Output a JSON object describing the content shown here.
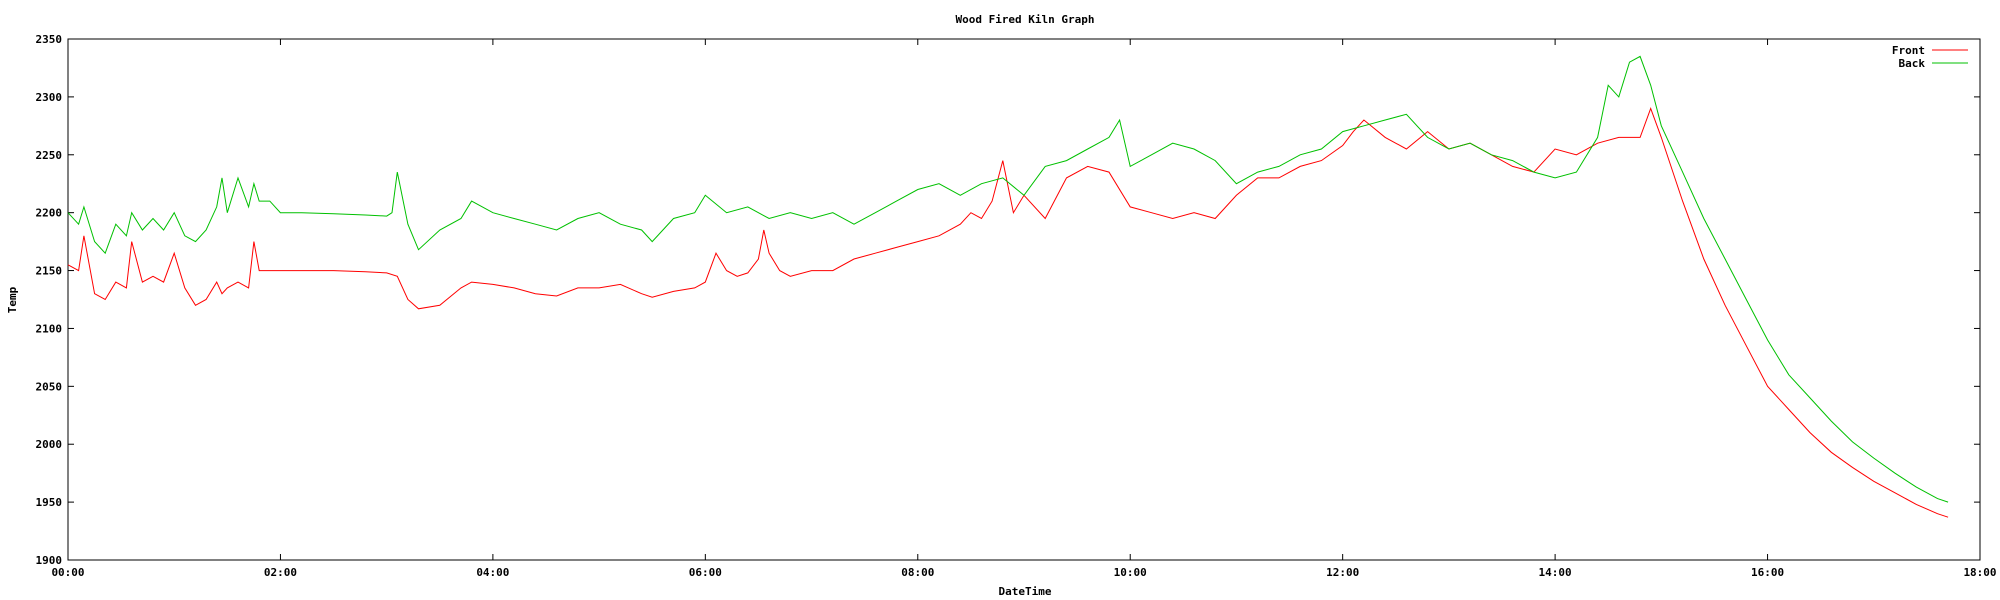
{
  "chart_data": {
    "type": "line",
    "title": "Wood Fired Kiln Graph",
    "xlabel": "DateTime",
    "ylabel": "Temp",
    "xlim": [
      0,
      18
    ],
    "ylim": [
      1900,
      2350
    ],
    "xticks": [
      0,
      2,
      4,
      6,
      8,
      10,
      12,
      14,
      16,
      18
    ],
    "xtick_labels": [
      "00:00",
      "02:00",
      "04:00",
      "06:00",
      "08:00",
      "10:00",
      "12:00",
      "14:00",
      "16:00",
      "18:00"
    ],
    "yticks": [
      1900,
      1950,
      2000,
      2050,
      2100,
      2150,
      2200,
      2250,
      2300,
      2350
    ],
    "grid": false,
    "legend": "top-right",
    "series": [
      {
        "name": "Front",
        "color": "#ff0000",
        "x": [
          0.0,
          0.1,
          0.15,
          0.25,
          0.35,
          0.45,
          0.55,
          0.6,
          0.7,
          0.8,
          0.9,
          1.0,
          1.1,
          1.2,
          1.3,
          1.4,
          1.45,
          1.5,
          1.6,
          1.7,
          1.75,
          1.8,
          1.9,
          2.0,
          2.2,
          2.5,
          2.8,
          3.0,
          3.1,
          3.2,
          3.3,
          3.5,
          3.7,
          3.8,
          4.0,
          4.2,
          4.4,
          4.6,
          4.8,
          5.0,
          5.2,
          5.4,
          5.5,
          5.7,
          5.9,
          6.0,
          6.1,
          6.2,
          6.3,
          6.4,
          6.5,
          6.55,
          6.6,
          6.7,
          6.8,
          7.0,
          7.2,
          7.4,
          7.6,
          7.8,
          8.0,
          8.2,
          8.4,
          8.5,
          8.6,
          8.7,
          8.8,
          8.9,
          9.0,
          9.2,
          9.4,
          9.6,
          9.8,
          10.0,
          10.2,
          10.4,
          10.6,
          10.8,
          11.0,
          11.2,
          11.4,
          11.6,
          11.8,
          12.0,
          12.1,
          12.2,
          12.4,
          12.6,
          12.8,
          13.0,
          13.2,
          13.4,
          13.6,
          13.8,
          14.0,
          14.2,
          14.4,
          14.6,
          14.8,
          14.9,
          15.0,
          15.2,
          15.4,
          15.6,
          15.8,
          16.0,
          16.2,
          16.4,
          16.6,
          16.8,
          17.0,
          17.2,
          17.4,
          17.6,
          17.7
        ],
        "y": [
          2155,
          2150,
          2180,
          2130,
          2125,
          2140,
          2135,
          2175,
          2140,
          2145,
          2140,
          2165,
          2135,
          2120,
          2125,
          2140,
          2130,
          2135,
          2140,
          2135,
          2175,
          2150,
          2150,
          2150,
          2150,
          2150,
          2149,
          2148,
          2145,
          2125,
          2117,
          2120,
          2135,
          2140,
          2138,
          2135,
          2130,
          2128,
          2135,
          2135,
          2138,
          2130,
          2127,
          2132,
          2135,
          2140,
          2165,
          2150,
          2145,
          2148,
          2160,
          2185,
          2165,
          2150,
          2145,
          2150,
          2150,
          2160,
          2165,
          2170,
          2175,
          2180,
          2190,
          2200,
          2195,
          2210,
          2245,
          2200,
          2215,
          2195,
          2230,
          2240,
          2235,
          2205,
          2200,
          2195,
          2200,
          2195,
          2215,
          2230,
          2230,
          2240,
          2245,
          2258,
          2270,
          2280,
          2265,
          2255,
          2270,
          2255,
          2260,
          2250,
          2240,
          2235,
          2255,
          2250,
          2260,
          2265,
          2265,
          2290,
          2265,
          2210,
          2160,
          2120,
          2085,
          2050,
          2030,
          2010,
          1993,
          1980,
          1968,
          1958,
          1948,
          1940,
          1937
        ]
      },
      {
        "name": "Back",
        "color": "#00c000",
        "x": [
          0.0,
          0.1,
          0.15,
          0.25,
          0.35,
          0.45,
          0.55,
          0.6,
          0.7,
          0.8,
          0.9,
          1.0,
          1.1,
          1.2,
          1.3,
          1.4,
          1.45,
          1.5,
          1.6,
          1.7,
          1.75,
          1.8,
          1.9,
          2.0,
          2.2,
          2.5,
          2.8,
          3.0,
          3.05,
          3.1,
          3.2,
          3.3,
          3.5,
          3.7,
          3.8,
          4.0,
          4.2,
          4.4,
          4.6,
          4.8,
          5.0,
          5.2,
          5.4,
          5.5,
          5.7,
          5.9,
          6.0,
          6.2,
          6.4,
          6.6,
          6.8,
          7.0,
          7.2,
          7.4,
          7.6,
          7.8,
          8.0,
          8.2,
          8.4,
          8.6,
          8.8,
          9.0,
          9.2,
          9.4,
          9.6,
          9.8,
          9.9,
          10.0,
          10.2,
          10.4,
          10.6,
          10.8,
          11.0,
          11.2,
          11.4,
          11.6,
          11.8,
          12.0,
          12.2,
          12.4,
          12.6,
          12.8,
          13.0,
          13.2,
          13.4,
          13.6,
          13.8,
          14.0,
          14.2,
          14.4,
          14.5,
          14.6,
          14.7,
          14.8,
          14.9,
          15.0,
          15.2,
          15.4,
          15.6,
          15.8,
          16.0,
          16.2,
          16.4,
          16.6,
          16.8,
          17.0,
          17.2,
          17.4,
          17.6,
          17.7
        ],
        "y": [
          2200,
          2190,
          2205,
          2175,
          2165,
          2190,
          2180,
          2200,
          2185,
          2195,
          2185,
          2200,
          2180,
          2175,
          2185,
          2205,
          2230,
          2200,
          2230,
          2205,
          2225,
          2210,
          2210,
          2200,
          2200,
          2199,
          2198,
          2197,
          2200,
          2235,
          2190,
          2168,
          2185,
          2195,
          2210,
          2200,
          2195,
          2190,
          2185,
          2195,
          2200,
          2190,
          2185,
          2175,
          2195,
          2200,
          2215,
          2200,
          2205,
          2195,
          2200,
          2195,
          2200,
          2190,
          2200,
          2210,
          2220,
          2225,
          2215,
          2225,
          2230,
          2215,
          2240,
          2245,
          2255,
          2265,
          2280,
          2240,
          2250,
          2260,
          2255,
          2245,
          2225,
          2235,
          2240,
          2250,
          2255,
          2270,
          2275,
          2280,
          2285,
          2265,
          2255,
          2260,
          2250,
          2245,
          2235,
          2230,
          2235,
          2265,
          2310,
          2300,
          2330,
          2335,
          2310,
          2275,
          2235,
          2195,
          2160,
          2125,
          2090,
          2060,
          2040,
          2020,
          2002,
          1988,
          1975,
          1963,
          1953,
          1950
        ]
      }
    ]
  }
}
